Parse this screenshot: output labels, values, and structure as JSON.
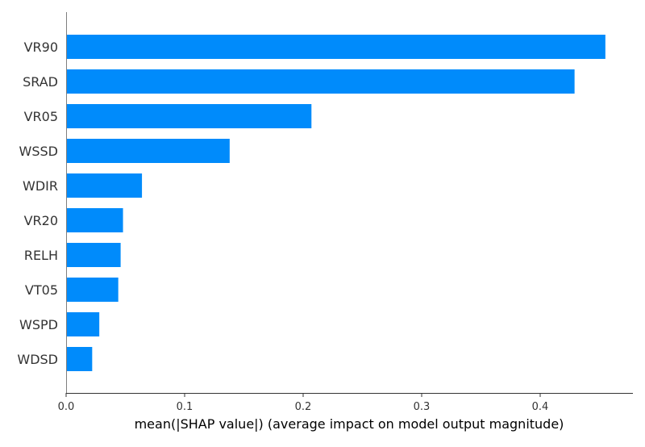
{
  "chart_data": {
    "type": "bar",
    "orientation": "horizontal",
    "categories": [
      "VR90",
      "SRAD",
      "VR05",
      "WSSD",
      "WDIR",
      "VR20",
      "RELH",
      "VT05",
      "WSPD",
      "WDSD"
    ],
    "values": [
      0.455,
      0.429,
      0.207,
      0.138,
      0.064,
      0.048,
      0.046,
      0.044,
      0.028,
      0.022
    ],
    "xlabel": "mean(|SHAP value|) (average impact on model output magnitude)",
    "ylabel": "",
    "xlim": [
      0,
      0.48
    ],
    "xticks": [
      0.0,
      0.1,
      0.2,
      0.3,
      0.4
    ],
    "xtick_labels": [
      "0.0",
      "0.1",
      "0.2",
      "0.3",
      "0.4"
    ],
    "bar_color": "#008bfb",
    "grid": false,
    "legend": "none"
  }
}
